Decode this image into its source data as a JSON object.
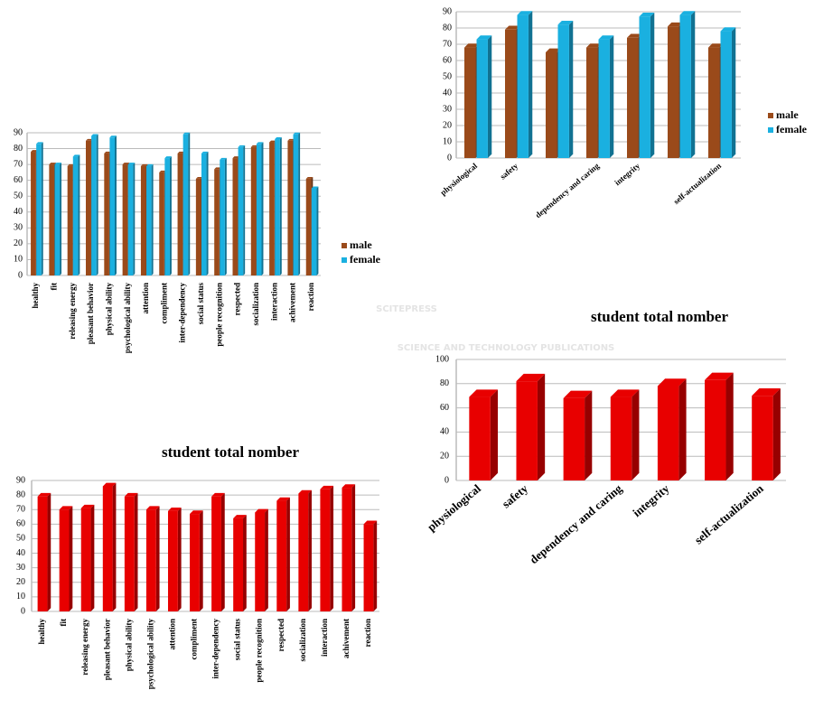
{
  "chart_data": [
    {
      "type": "bar",
      "categories": [
        "healthy",
        "fit",
        "releasing energy",
        "pleasant behavior",
        "physical ability",
        "psychological ability",
        "attention",
        "compliment",
        "inter-dependency",
        "social status",
        "people recognition",
        "respected",
        "socialization",
        "interaction",
        "achivement",
        "reaction"
      ],
      "series": [
        {
          "name": "male",
          "color": "#9a4a1a",
          "values": [
            78,
            70,
            69,
            85,
            77,
            70,
            69,
            65,
            77,
            61,
            67,
            74,
            81,
            84,
            85,
            61
          ]
        },
        {
          "name": "female",
          "color": "#1ab0e0",
          "values": [
            83,
            70,
            75,
            88,
            87,
            70,
            69,
            74,
            89,
            77,
            73,
            81,
            83,
            86,
            89,
            55
          ]
        }
      ],
      "ylim": [
        0,
        90
      ],
      "yticks": [
        0,
        10,
        20,
        30,
        40,
        50,
        60,
        70,
        80,
        90
      ],
      "grid": true,
      "legend": "right"
    },
    {
      "type": "bar",
      "categories": [
        "physiological",
        "safety",
        null,
        "dependency and caring",
        "integrity",
        null,
        "self-actualization"
      ],
      "series": [
        {
          "name": "male",
          "color": "#9a4a1a",
          "values": [
            68,
            79,
            65,
            68,
            74,
            81,
            68
          ]
        },
        {
          "name": "female",
          "color": "#1ab0e0",
          "values": [
            73,
            88,
            82,
            73,
            87,
            88,
            78
          ]
        }
      ],
      "ylim": [
        0,
        90
      ],
      "yticks": [
        0,
        10,
        20,
        30,
        40,
        50,
        60,
        70,
        80,
        90
      ],
      "grid": true,
      "legend": "right"
    },
    {
      "type": "bar",
      "title": "student total nomber",
      "categories": [
        "physiological",
        "safety",
        null,
        "dependency and caring",
        "integrity",
        null,
        "self-actualization"
      ],
      "values": [
        69,
        82,
        68,
        69,
        78,
        83,
        70
      ],
      "color": "#e80000",
      "ylim": [
        0,
        100
      ],
      "yticks": [
        0,
        20,
        40,
        60,
        80,
        100
      ],
      "grid": true
    },
    {
      "type": "bar",
      "title": "student total nomber",
      "categories": [
        "healthy",
        "fit",
        "releasing energy",
        "pleasant behavior",
        "physical ability",
        "psychological ability",
        "attention",
        "compliment",
        "inter-dependency",
        "social status",
        "people recognition",
        "respected",
        "socialization",
        "interaction",
        "achivement",
        "reaction"
      ],
      "values": [
        79,
        70,
        71,
        86,
        79,
        70,
        69,
        67,
        79,
        64,
        68,
        76,
        81,
        84,
        85,
        60
      ],
      "color": "#e80000",
      "ylim": [
        0,
        90
      ],
      "yticks": [
        0,
        10,
        20,
        30,
        40,
        50,
        60,
        70,
        80,
        90
      ],
      "grid": true
    }
  ],
  "watermark": {
    "brand": "SCITEPRESS",
    "tagline": "SCIENCE AND TECHNOLOGY PUBLICATIONS"
  }
}
